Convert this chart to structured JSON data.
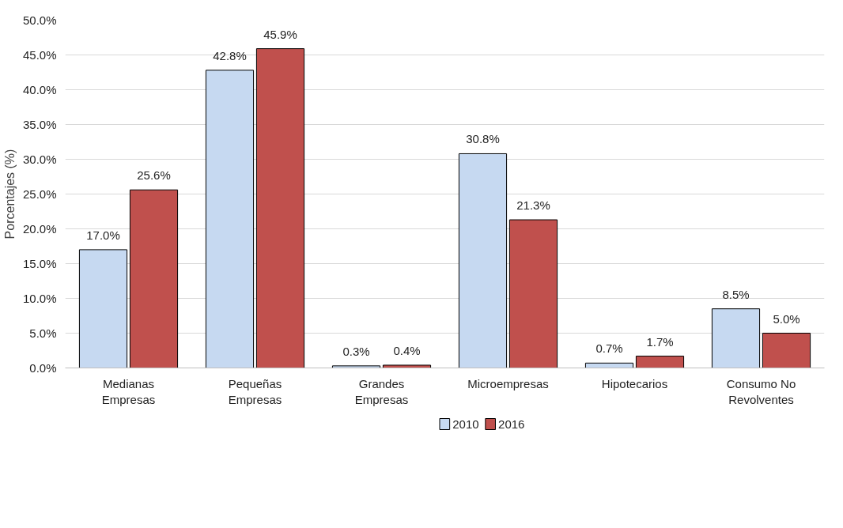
{
  "chart_data": {
    "type": "bar",
    "ylabel": "Porcentajes (%)",
    "categories": [
      "Medianas Empresas",
      "Pequeñas Empresas",
      "Grandes Empresas",
      "Microempresas",
      "Hipotecarios",
      "Consumo No Revolventes"
    ],
    "series": [
      {
        "name": "2010",
        "color": "#c6d9f1",
        "values": [
          17.0,
          42.8,
          0.3,
          30.8,
          0.7,
          8.5
        ],
        "value_labels": [
          "17.0%",
          "42.8%",
          "0.3%",
          "30.8%",
          "0.7%",
          "8.5%"
        ]
      },
      {
        "name": "2016",
        "color": "#c0504d",
        "values": [
          25.6,
          45.9,
          0.4,
          21.3,
          1.7,
          5.0
        ],
        "value_labels": [
          "25.6%",
          "45.9%",
          "0.4%",
          "21.3%",
          "1.7%",
          "5.0%"
        ]
      }
    ],
    "ylim": [
      0,
      50
    ],
    "yticks": [
      {
        "value": 0,
        "label": "0.0%"
      },
      {
        "value": 5,
        "label": "5.0%"
      },
      {
        "value": 10,
        "label": "10.0%"
      },
      {
        "value": 15,
        "label": "15.0%"
      },
      {
        "value": 20,
        "label": "20.0%"
      },
      {
        "value": 25,
        "label": "25.0%"
      },
      {
        "value": 30,
        "label": "30.0%"
      },
      {
        "value": 35,
        "label": "35.0%"
      },
      {
        "value": 40,
        "label": "40.0%"
      },
      {
        "value": 45,
        "label": "45.0%"
      },
      {
        "value": 50,
        "label": "50.0%"
      }
    ],
    "grid": "y",
    "legend": "bottom"
  }
}
